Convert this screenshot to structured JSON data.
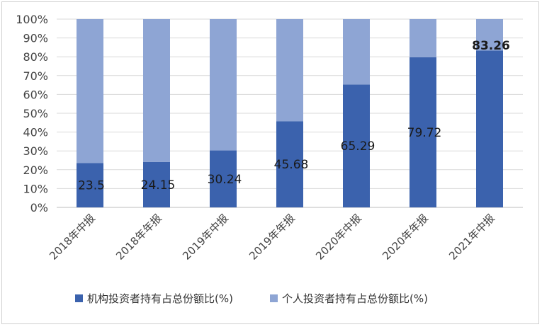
{
  "chart_data": {
    "type": "bar",
    "stacked": true,
    "percent_stacked": true,
    "categories": [
      "2018年中报",
      "2018年年报",
      "2019年中报",
      "2019年年报",
      "2020年中报",
      "2020年年报",
      "2021年中报"
    ],
    "series": [
      {
        "name": "机构投资者持有占总份额比(%)",
        "color": "#3b62ad",
        "values": [
          23.5,
          24.15,
          30.24,
          45.68,
          65.29,
          79.72,
          83.26
        ]
      },
      {
        "name": "个人投资者持有占总份额比(%)",
        "color": "#8ea5d4",
        "values": [
          76.5,
          75.85,
          69.76,
          54.32,
          34.71,
          20.28,
          16.74
        ]
      }
    ],
    "data_labels": [
      "23.5",
      "24.15",
      "30.24",
      "45.68",
      "65.29",
      "79.72",
      "83.26"
    ],
    "highlight": {
      "index": 6,
      "color": "#e8241f"
    },
    "y_ticks": [
      "0%",
      "10%",
      "20%",
      "30%",
      "40%",
      "50%",
      "60%",
      "70%",
      "80%",
      "90%",
      "100%"
    ],
    "ylim": [
      0,
      100
    ],
    "grid": true,
    "legend_position": "bottom"
  }
}
